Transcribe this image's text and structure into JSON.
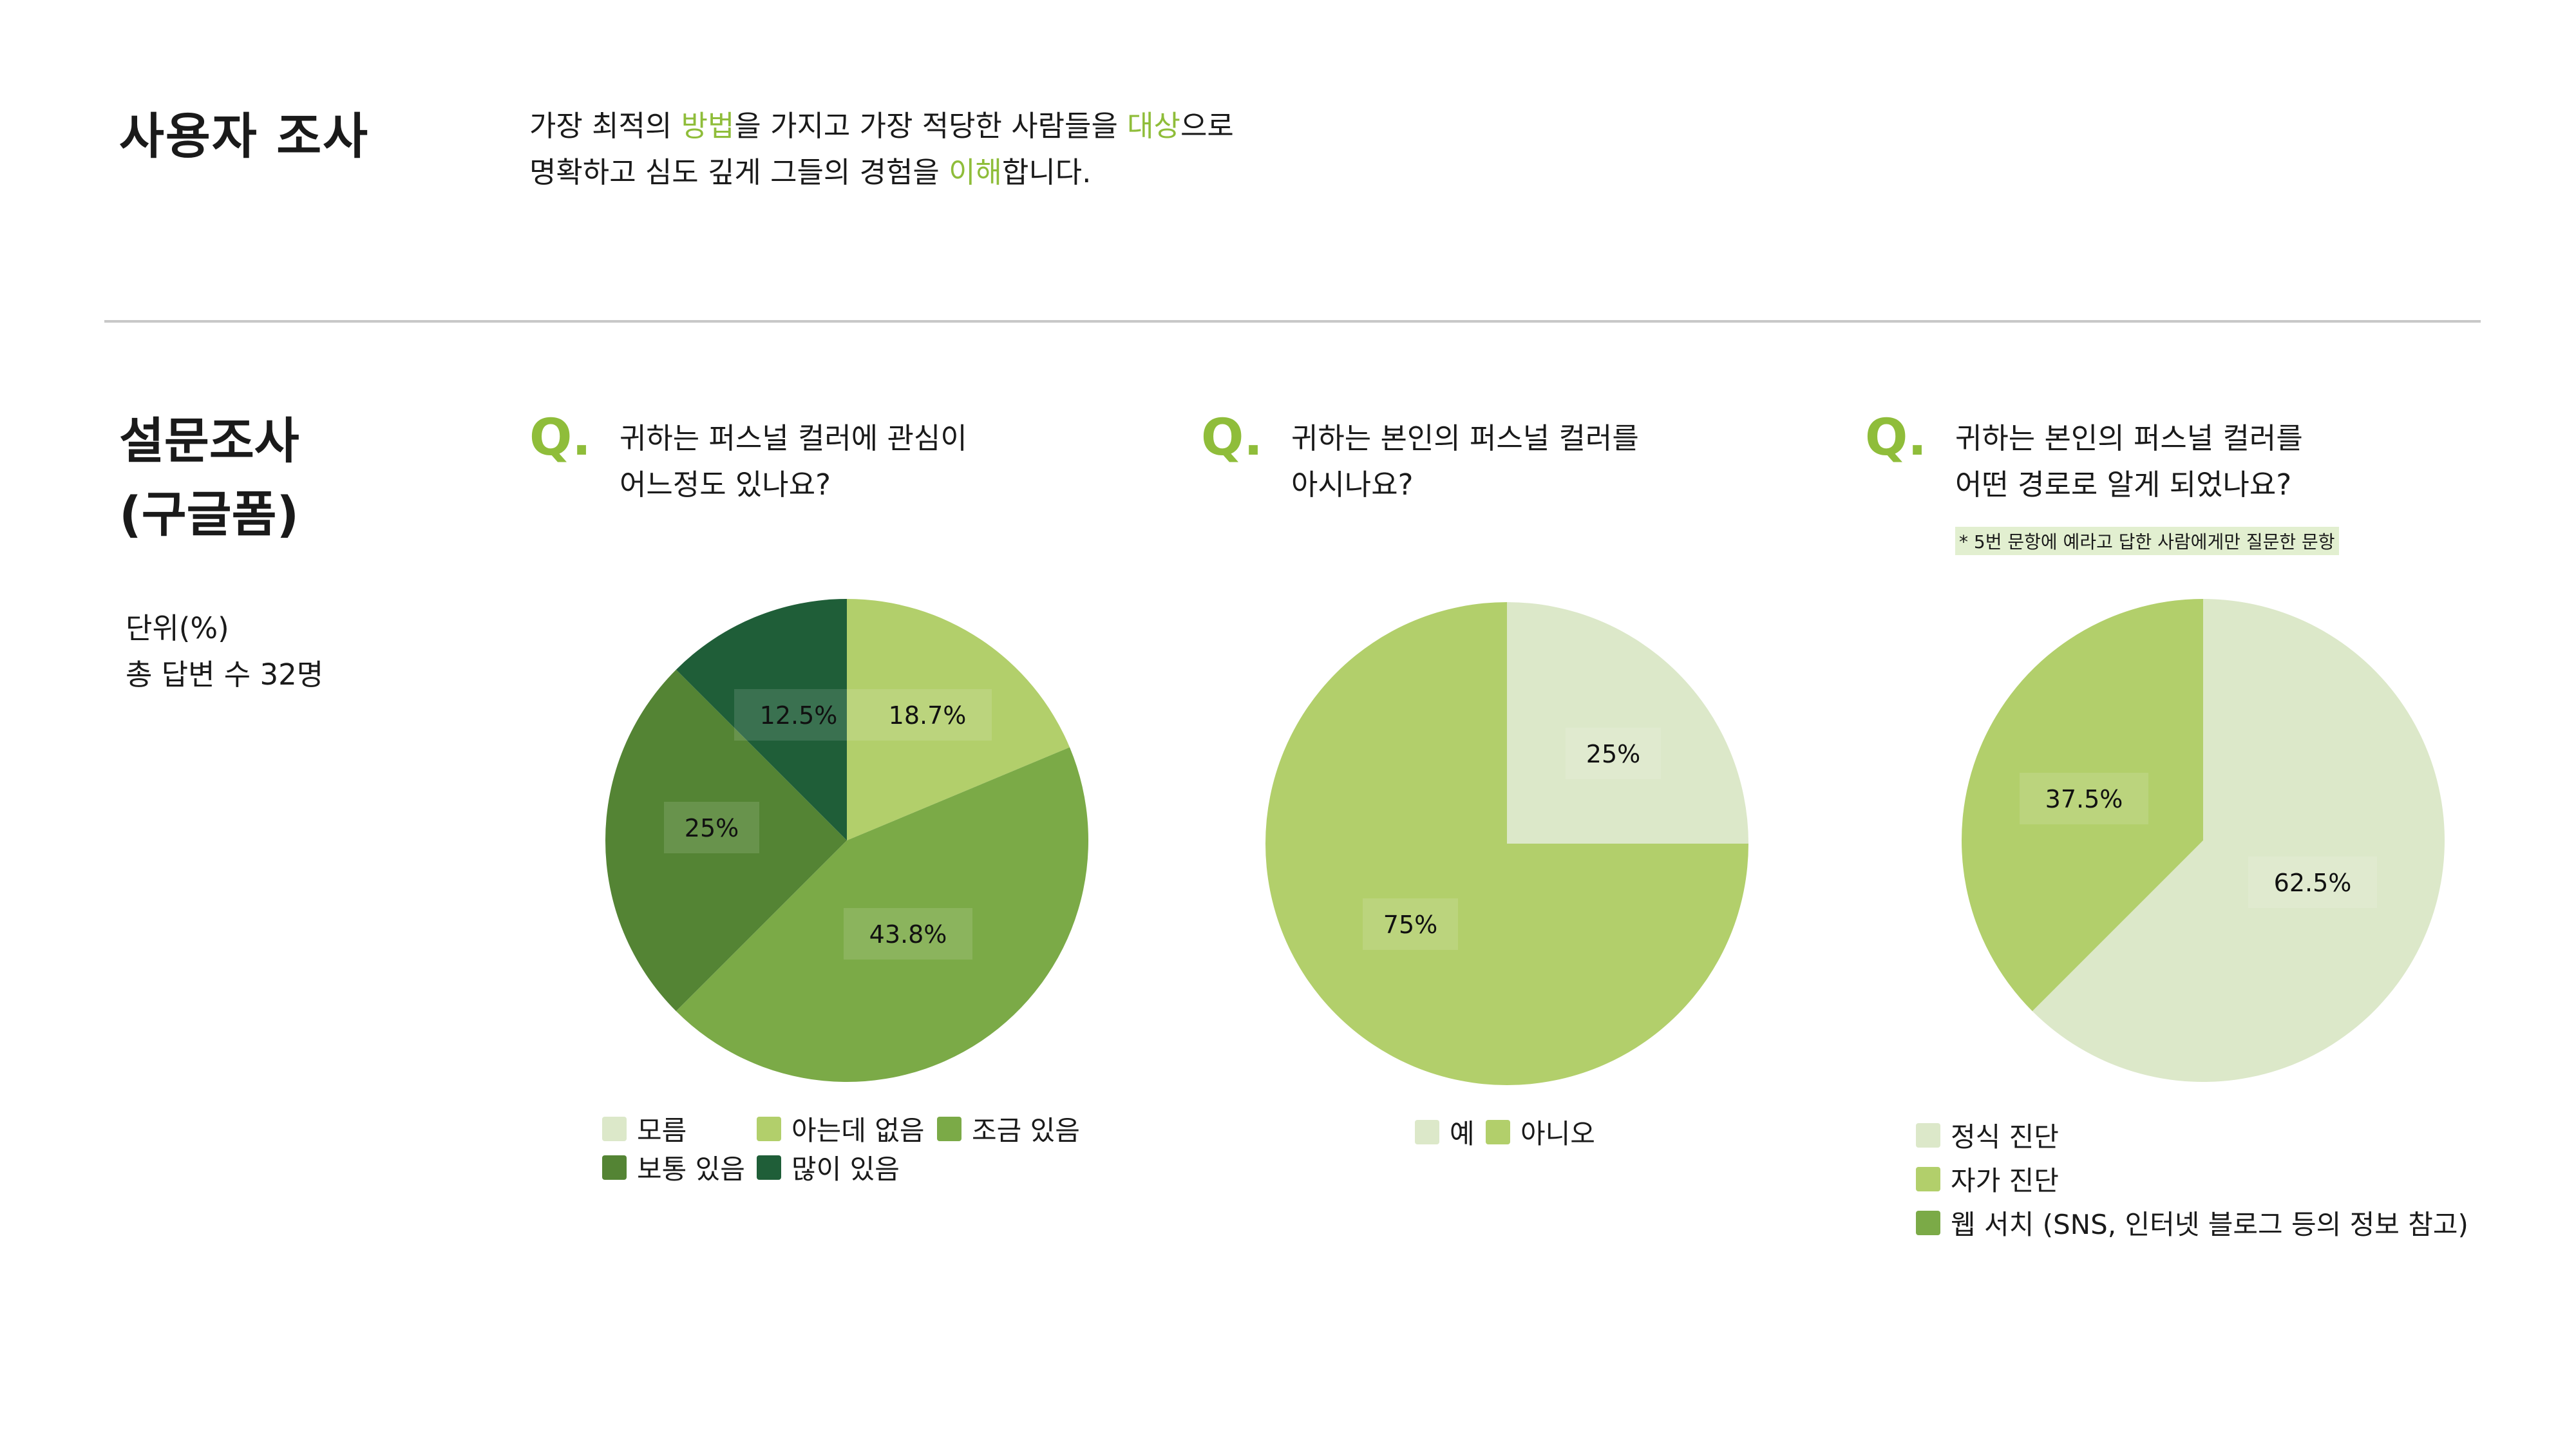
{
  "header": {
    "title": "사용자 조사",
    "intro_line1": [
      {
        "text": "가장 최적의 ",
        "hl": false
      },
      {
        "text": "방법",
        "hl": true
      },
      {
        "text": "을 가지고 가장 적당한 사람들을 ",
        "hl": false
      },
      {
        "text": "대상",
        "hl": true
      },
      {
        "text": "으로",
        "hl": false
      }
    ],
    "intro_line2": [
      {
        "text": "명확하고 심도 깊게 그들의 경험을 ",
        "hl": false
      },
      {
        "text": "이해",
        "hl": true
      },
      {
        "text": "합니다.",
        "hl": false
      }
    ]
  },
  "section": {
    "title_line1": "설문조사",
    "title_line2": "(구글폼)",
    "unit": "단위(%)",
    "respondents": "총 답변 수 32명"
  },
  "questions": [
    {
      "mark": "Q.",
      "line1": "귀하는 퍼스널 컬러에 관심이",
      "line2": "어느정도 있나요?",
      "note": ""
    },
    {
      "mark": "Q.",
      "line1": "귀하는 본인의 퍼스널 컬러를",
      "line2": "아시나요?",
      "note": ""
    },
    {
      "mark": "Q.",
      "line1": "귀하는 본인의 퍼스널 컬러를",
      "line2": "어떤 경로로 알게 되었나요?",
      "note": "* 5번 문항에 예라고 답한 사람에게만 질문한 문항"
    }
  ],
  "chart_data": [
    {
      "type": "pie",
      "categories": [
        "모름",
        "아는데 없음",
        "조금 있음",
        "보통 있음",
        "많이 있음"
      ],
      "values": [
        0,
        18.7,
        43.8,
        25,
        12.5
      ],
      "labels": [
        "",
        "18.7%",
        "43.8%",
        "25%",
        "12.5%"
      ],
      "colors": [
        "#dce8c9",
        "#b2cf6b",
        "#7baa47",
        "#548434",
        "#1f5e38"
      ],
      "legend": "bottom"
    },
    {
      "type": "pie",
      "categories": [
        "예",
        "아니오"
      ],
      "values": [
        25,
        75
      ],
      "labels": [
        "25%",
        "75%"
      ],
      "colors": [
        "#dce8c9",
        "#b2cf6b"
      ],
      "legend": "bottom"
    },
    {
      "type": "pie",
      "categories": [
        "정식 진단",
        "자가 진단",
        "웹 서치 (SNS, 인터넷 블로그 등의 정보 참고)"
      ],
      "values": [
        62.5,
        37.5,
        0
      ],
      "labels": [
        "62.5%",
        "37.5%",
        ""
      ],
      "colors": [
        "#dce8c9",
        "#b2cf6b",
        "#7baa47"
      ],
      "legend": "bottom"
    }
  ]
}
